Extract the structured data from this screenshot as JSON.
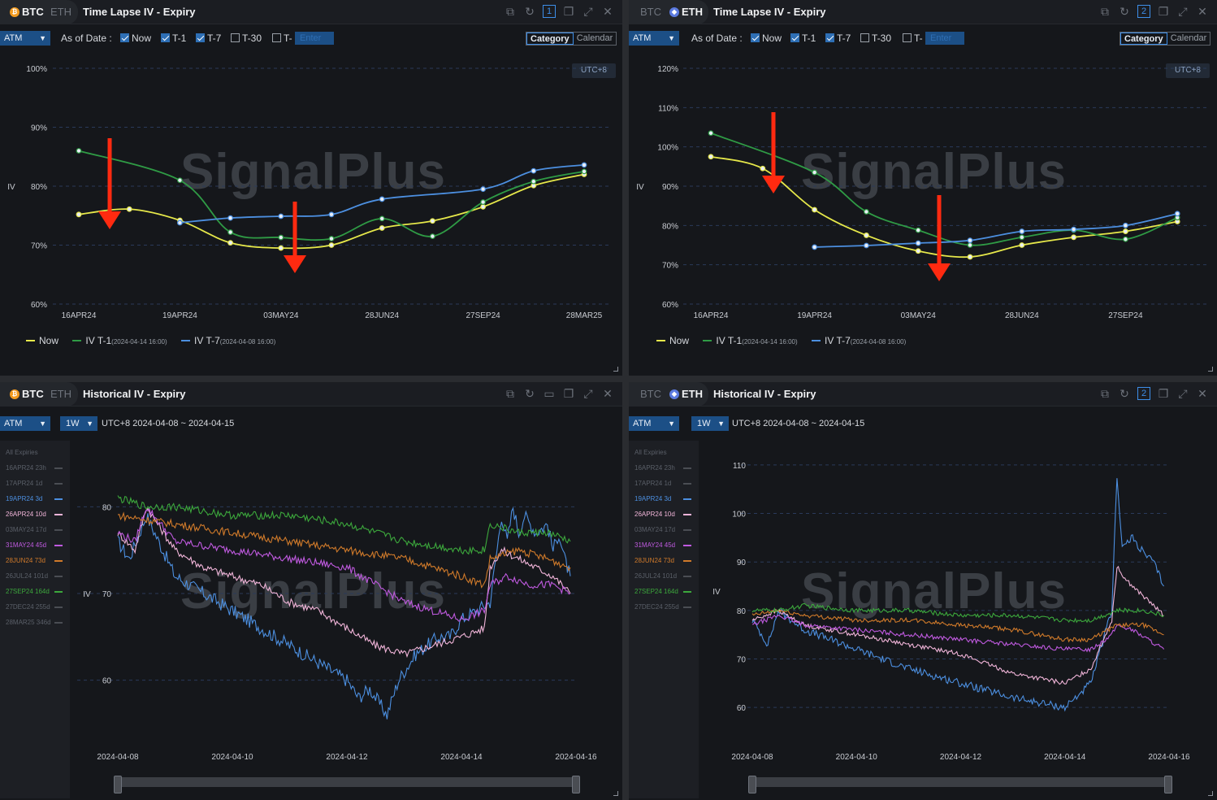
{
  "colors": {
    "now": "#e6e84a",
    "t1": "#2f9b45",
    "t7": "#4c8fe0",
    "grid": "#2a3a5a",
    "arrow": "#ff2a10",
    "axis": "#c9ccd2"
  },
  "panels": [
    {
      "id": "p1",
      "coins": {
        "active": "BTC",
        "inactive": "ETH"
      },
      "title": "Time Lapse IV - Expiry",
      "num": "1",
      "toolbar": {
        "atm": "ATM",
        "asof": "As of Date :",
        "now": "Now",
        "t1": "T-1",
        "t7": "T-7",
        "t30": "T-30",
        "tn": "T-",
        "enter": "Enter",
        "category": "Category",
        "calendar": "Calendar"
      },
      "utc": "UTC+8",
      "watermark": "SignalPlus",
      "legend": {
        "now": "Now",
        "t1": "IV T-1",
        "t1_date": "(2024-04-14 16:00)",
        "t7": "IV T-7",
        "t7_date": "(2024-04-08 16:00)"
      }
    },
    {
      "id": "p2",
      "coins": {
        "active": "ETH",
        "inactive": "BTC"
      },
      "title": "Time Lapse IV - Expiry",
      "num": "2",
      "toolbar": {
        "atm": "ATM",
        "asof": "As of Date :",
        "now": "Now",
        "t1": "T-1",
        "t7": "T-7",
        "t30": "T-30",
        "tn": "T-",
        "enter": "Enter",
        "category": "Category",
        "calendar": "Calendar"
      },
      "utc": "UTC+8",
      "watermark": "SignalPlus",
      "legend": {
        "now": "Now",
        "t1": "IV T-1",
        "t1_date": "(2024-04-14 16:00)",
        "t7": "IV T-7",
        "t7_date": "(2024-04-08 16:00)"
      }
    },
    {
      "id": "p3",
      "coins": {
        "active": "BTC",
        "inactive": "ETH"
      },
      "title": "Historical IV - Expiry",
      "num": "",
      "toolbar": {
        "atm": "ATM",
        "wk": "1W",
        "range": "UTC+8 2024-04-08 ~ 2024-04-15"
      },
      "watermark": "SignalPlus",
      "side_legend": [
        "All Expiries",
        "16APR24 23h",
        "17APR24 1d",
        "19APR24 3d",
        "26APR24 10d",
        "03MAY24 17d",
        "31MAY24 45d",
        "28JUN24 73d",
        "26JUL24 101d",
        "27SEP24 164d",
        "27DEC24 255d",
        "28MAR25 346d"
      ]
    },
    {
      "id": "p4",
      "coins": {
        "active": "ETH",
        "inactive": "BTC"
      },
      "title": "Historical IV - Expiry",
      "num": "2",
      "toolbar": {
        "atm": "ATM",
        "wk": "1W",
        "range": "UTC+8 2024-04-08 ~ 2024-04-15"
      },
      "watermark": "SignalPlus",
      "side_legend": [
        "All Expiries",
        "16APR24 23h",
        "17APR24 1d",
        "19APR24 3d",
        "26APR24 10d",
        "03MAY24 17d",
        "31MAY24 45d",
        "28JUN24 73d",
        "26JUL24 101d",
        "27SEP24 164d",
        "27DEC24 255d"
      ]
    }
  ],
  "chart_data": [
    {
      "type": "line",
      "panel": "BTC Time Lapse IV - Expiry",
      "ylabel": "IV",
      "ylim": [
        60,
        100
      ],
      "yticks": [
        "60%",
        "70%",
        "80%",
        "90%",
        "100%"
      ],
      "xticks": [
        "16APR24",
        "19APR24",
        "03MAY24",
        "28JUN24",
        "27SEP24",
        "28MAR25"
      ],
      "series": [
        {
          "name": "Now",
          "x": [
            0,
            0.5,
            1,
            1.5,
            2,
            2.5,
            3,
            3.5,
            4,
            4.5,
            5
          ],
          "values": [
            75.2,
            76.1,
            74.2,
            70.4,
            69.5,
            70.0,
            72.9,
            74.1,
            76.5,
            80.1,
            82.0
          ]
        },
        {
          "name": "IV T-1",
          "x": [
            0,
            1,
            1.5,
            2,
            2.5,
            3,
            3.5,
            4,
            4.5,
            5
          ],
          "values": [
            86.0,
            81.0,
            72.2,
            71.3,
            71.1,
            74.5,
            71.5,
            77.3,
            80.8,
            82.5
          ]
        },
        {
          "name": "IV T-7",
          "x": [
            1,
            1.5,
            2,
            2.5,
            3,
            4,
            4.5,
            5
          ],
          "values": [
            73.8,
            74.6,
            74.9,
            75.2,
            77.8,
            79.5,
            82.6,
            83.6
          ]
        }
      ]
    },
    {
      "type": "line",
      "panel": "ETH Time Lapse IV - Expiry",
      "ylabel": "IV",
      "ylim": [
        60,
        120
      ],
      "yticks": [
        "60%",
        "70%",
        "80%",
        "90%",
        "100%",
        "110%",
        "120%"
      ],
      "xticks": [
        "16APR24",
        "19APR24",
        "03MAY24",
        "28JUN24",
        "27SEP24"
      ],
      "series": [
        {
          "name": "Now",
          "x": [
            0,
            0.5,
            1,
            1.5,
            2,
            2.5,
            3,
            3.5,
            4,
            4.5
          ],
          "values": [
            97.5,
            94.5,
            84.0,
            77.5,
            73.5,
            72.0,
            75.0,
            77.0,
            78.5,
            81.0
          ]
        },
        {
          "name": "IV T-1",
          "x": [
            0,
            1,
            1.5,
            2,
            2.5,
            3,
            3.5,
            4,
            4.5
          ],
          "values": [
            103.5,
            93.5,
            83.5,
            78.8,
            75.0,
            77.0,
            78.8,
            76.5,
            82.0
          ]
        },
        {
          "name": "IV T-7",
          "x": [
            1,
            1.5,
            2,
            2.5,
            3,
            3.5,
            4,
            4.5
          ],
          "values": [
            74.5,
            74.9,
            75.5,
            76.2,
            78.5,
            79.0,
            80.0,
            83.0
          ]
        }
      ]
    },
    {
      "type": "line",
      "panel": "BTC Historical IV - Expiry",
      "ylabel": "IV",
      "ylim": [
        55,
        85
      ],
      "yticks": [
        "60",
        "70",
        "80"
      ],
      "xticks": [
        "2024-04-08",
        "2024-04-10",
        "2024-04-12",
        "2024-04-14",
        "2024-04-16"
      ],
      "series": [
        {
          "name": "19APR24 3d",
          "color": "#4c8fe0",
          "x": [
            0,
            0.2,
            0.5,
            1,
            1.5,
            2,
            2.5,
            3,
            3.5,
            4,
            4.2,
            4.4,
            4.6,
            4.7,
            4.8,
            4.9,
            5,
            5.2,
            5.4,
            5.6,
            5.8,
            6,
            6.5,
            6.7,
            6.8,
            6.9,
            7,
            7.1,
            7.3,
            7.5,
            7.6,
            7.7,
            7.8,
            7.9
          ],
          "values": [
            76,
            74,
            79,
            72,
            70,
            68,
            66,
            64,
            62,
            60,
            58,
            59,
            57,
            56,
            58,
            60,
            61,
            63,
            64,
            65,
            65,
            67,
            69,
            79,
            76,
            80,
            77,
            79,
            77,
            78,
            75,
            77,
            74,
            72
          ]
        },
        {
          "name": "26APR24 10d",
          "color": "#f0b4d8",
          "x": [
            0,
            0.3,
            0.5,
            1,
            1.5,
            2,
            2.5,
            3,
            3.5,
            4,
            4.5,
            5,
            5.5,
            6,
            6.4,
            6.5,
            6.7,
            7,
            7.3,
            7.6,
            7.9
          ],
          "values": [
            77,
            75,
            80,
            75,
            73,
            72,
            71,
            69,
            68,
            66,
            64,
            63,
            64,
            65,
            66,
            73,
            75,
            74,
            73,
            72,
            70
          ]
        },
        {
          "name": "31MAY24 45d",
          "color": "#c05ae0",
          "x": [
            0,
            0.3,
            0.5,
            1,
            2,
            3,
            4,
            4.5,
            5,
            5.5,
            6,
            6.4,
            6.5,
            6.8,
            7.2,
            7.6,
            7.9
          ],
          "values": [
            77,
            76,
            80,
            76,
            75,
            74,
            73,
            71,
            69,
            68,
            67,
            68,
            71,
            72,
            71,
            71,
            70
          ]
        },
        {
          "name": "28JUN24 73d",
          "color": "#d07a2a",
          "x": [
            0,
            1,
            2,
            3,
            4,
            5,
            6,
            6.4,
            6.5,
            7,
            7.5,
            7.9
          ],
          "values": [
            79,
            78,
            77,
            76,
            75,
            74,
            72,
            71,
            74,
            75,
            74,
            73
          ]
        },
        {
          "name": "27SEP24 164d",
          "color": "#3ca83c",
          "x": [
            0,
            0.5,
            1,
            2,
            3,
            4,
            5,
            6,
            6.4,
            6.5,
            7,
            7.5,
            7.9
          ],
          "values": [
            81,
            80,
            80,
            79,
            79,
            78,
            76,
            75,
            75,
            78,
            77,
            77,
            76
          ]
        }
      ]
    },
    {
      "type": "line",
      "panel": "ETH Historical IV - Expiry",
      "ylabel": "IV",
      "ylim": [
        55,
        113
      ],
      "yticks": [
        "60",
        "70",
        "80",
        "90",
        "100",
        "110"
      ],
      "xticks": [
        "2024-04-08",
        "2024-04-10",
        "2024-04-12",
        "2024-04-14",
        "2024-04-16"
      ],
      "series": [
        {
          "name": "19APR24 3d",
          "color": "#4c8fe0",
          "x": [
            0,
            0.3,
            0.5,
            1,
            2,
            3,
            4,
            5,
            6,
            6.5,
            6.9,
            7,
            7.1,
            7.3,
            7.5,
            7.7,
            7.9
          ],
          "values": [
            78,
            73,
            80,
            76,
            72,
            68,
            65,
            62,
            60,
            65,
            80,
            108,
            93,
            95,
            92,
            90,
            85
          ]
        },
        {
          "name": "26APR24 10d",
          "color": "#f0b4d8",
          "x": [
            0,
            0.5,
            1,
            2,
            3,
            4,
            5,
            6,
            6.5,
            6.9,
            7,
            7.2,
            7.5,
            7.9
          ],
          "values": [
            78,
            80,
            77,
            75,
            73,
            71,
            67,
            65,
            68,
            78,
            89,
            86,
            83,
            79
          ]
        },
        {
          "name": "31MAY24 45d",
          "color": "#c05ae0",
          "x": [
            0,
            0.5,
            1,
            2,
            3,
            4,
            5,
            6,
            6.5,
            6.9,
            7,
            7.3,
            7.6,
            7.9
          ],
          "values": [
            77,
            79,
            77,
            76,
            75,
            74,
            73,
            72,
            72,
            75,
            77,
            76,
            74,
            72
          ]
        },
        {
          "name": "28JUN24 73d",
          "color": "#d07a2a",
          "x": [
            0,
            0.5,
            1,
            2,
            3,
            4,
            5,
            6,
            6.5,
            7,
            7.5,
            7.9
          ],
          "values": [
            79,
            80,
            79,
            78,
            78,
            77,
            76,
            74,
            74,
            77,
            77,
            75
          ]
        },
        {
          "name": "27SEP24 164d",
          "color": "#3ca83c",
          "x": [
            0,
            0.5,
            1,
            2,
            3,
            4,
            5,
            6,
            6.5,
            7,
            7.5,
            7.9
          ],
          "values": [
            80,
            80,
            81,
            80,
            80,
            79,
            79,
            78,
            78,
            80,
            80,
            79
          ]
        }
      ]
    }
  ]
}
